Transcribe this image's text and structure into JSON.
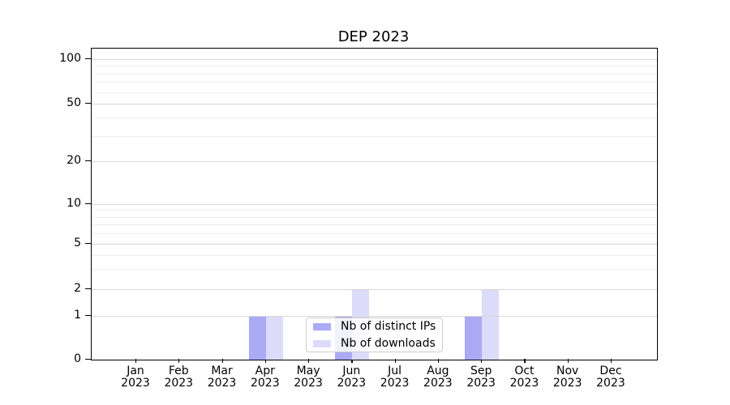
{
  "chart_data": {
    "type": "bar",
    "title": "DEP 2023",
    "categories": [
      "Jan",
      "Feb",
      "Mar",
      "Apr",
      "May",
      "Jun",
      "Jul",
      "Aug",
      "Sep",
      "Oct",
      "Nov",
      "Dec"
    ],
    "x_year_label": "2023",
    "series": [
      {
        "name": "Nb of distinct IPs",
        "color": "#aaaaf5",
        "values": [
          0,
          0,
          0,
          1,
          0,
          1,
          0,
          0,
          1,
          0,
          0,
          0
        ]
      },
      {
        "name": "Nb of downloads",
        "color": "#dcdcfa",
        "values": [
          0,
          0,
          0,
          1,
          0,
          2,
          0,
          0,
          2,
          0,
          0,
          0
        ]
      }
    ],
    "y_axis": {
      "ticks": [
        0,
        1,
        2,
        5,
        10,
        20,
        50,
        100
      ],
      "minor_gridlines": [
        3,
        4,
        6,
        7,
        8,
        9,
        30,
        40,
        60,
        70,
        80,
        90
      ],
      "scale": "symlog",
      "range": [
        0,
        100
      ]
    },
    "legend": {
      "entries": [
        "Nb of distinct IPs",
        "Nb of downloads"
      ],
      "position": "lower-center-inside"
    },
    "grid": true,
    "colors": {
      "major_grid": "#d6d6d6",
      "minor_grid": "#eeeeee",
      "axis": "#000000",
      "background": "#ffffff"
    }
  }
}
